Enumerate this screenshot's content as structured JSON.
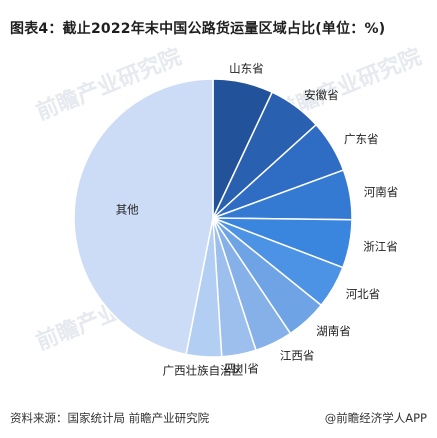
{
  "title": "图表4：截止2022年末中国公路货运量区域占比(单位：%)",
  "footer": {
    "source": "资料来源：国家统计局 前瞻产业研究院",
    "credit": "@前瞻经济学人APP"
  },
  "watermark": "前瞻产业研究院",
  "chart_data": {
    "type": "pie",
    "title": "图表4：截止2022年末中国公路货运量区域占比(单位：%)",
    "labels": [
      "山东省",
      "安徽省",
      "广东省",
      "河南省",
      "浙江省",
      "河北省",
      "湖南省",
      "江西省",
      "四川省",
      "广西壮族自治区",
      "其他"
    ],
    "values": [
      7.0,
      6.3,
      6.1,
      5.8,
      5.6,
      5.0,
      4.8,
      4.4,
      4.0,
      4.1,
      46.9
    ],
    "colors": [
      "#21529a",
      "#2a60b0",
      "#2f6cc4",
      "#3479d2",
      "#3a86de",
      "#4c93e6",
      "#6ea3e5",
      "#86b1e8",
      "#9cbfee",
      "#b3cef3",
      "#cddcf6"
    ],
    "start_angle_deg": 0,
    "direction": "clockwise",
    "legend": "none"
  }
}
